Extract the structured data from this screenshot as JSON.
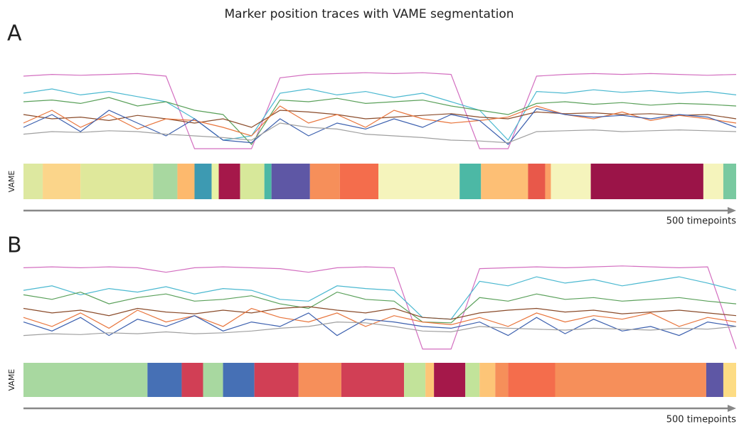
{
  "title": "Marker position traces with VAME segmentation",
  "chart_data": [
    {
      "type": "line",
      "label": "A",
      "y_label": "VAME",
      "x_label": "500 timepoints",
      "xlim": [
        0,
        500
      ],
      "ylim": [
        0,
        100
      ],
      "x": [
        0,
        20,
        40,
        60,
        80,
        100,
        120,
        140,
        160,
        180,
        200,
        220,
        240,
        260,
        280,
        300,
        320,
        340,
        360,
        380,
        400,
        420,
        440,
        460,
        480,
        500
      ],
      "series": [
        {
          "color": "#d36fc0",
          "values": [
            90,
            92,
            91,
            92,
            93,
            90,
            5,
            5,
            5,
            88,
            92,
            93,
            94,
            93,
            94,
            92,
            5,
            5,
            90,
            92,
            93,
            92,
            93,
            92,
            91,
            92
          ]
        },
        {
          "color": "#4ab8d0",
          "values": [
            70,
            75,
            68,
            72,
            66,
            60,
            40,
            15,
            20,
            70,
            75,
            68,
            72,
            65,
            70,
            60,
            50,
            15,
            72,
            70,
            74,
            71,
            73,
            70,
            72,
            68
          ]
        },
        {
          "color": "#5aa05a",
          "values": [
            60,
            62,
            58,
            65,
            55,
            60,
            50,
            45,
            10,
            62,
            60,
            64,
            58,
            60,
            62,
            55,
            50,
            45,
            58,
            60,
            57,
            59,
            56,
            58,
            57,
            55
          ]
        },
        {
          "color": "#8a4b2a",
          "values": [
            45,
            40,
            42,
            38,
            44,
            40,
            35,
            40,
            30,
            50,
            48,
            45,
            40,
            42,
            44,
            46,
            42,
            40,
            48,
            46,
            47,
            45,
            46,
            44,
            45,
            40
          ]
        },
        {
          "color": "#e8743b",
          "values": [
            35,
            50,
            30,
            45,
            28,
            40,
            38,
            30,
            20,
            55,
            35,
            45,
            30,
            50,
            40,
            35,
            38,
            42,
            55,
            45,
            40,
            48,
            38,
            44,
            40,
            35
          ]
        },
        {
          "color": "#3b5fae",
          "values": [
            30,
            45,
            25,
            50,
            35,
            20,
            40,
            15,
            12,
            40,
            20,
            35,
            28,
            40,
            30,
            45,
            38,
            10,
            52,
            45,
            42,
            44,
            40,
            45,
            42,
            30
          ]
        },
        {
          "color": "#a0a0a0",
          "values": [
            22,
            25,
            24,
            26,
            25,
            22,
            20,
            18,
            15,
            35,
            30,
            28,
            22,
            20,
            18,
            15,
            14,
            12,
            25,
            26,
            27,
            25,
            26,
            27,
            26,
            25
          ]
        }
      ],
      "segments": {
        "edges": [
          0,
          13.5,
          40,
          91,
          108,
          120,
          132,
          137,
          152,
          169,
          174,
          201,
          222,
          249,
          306,
          321,
          354,
          366,
          370,
          398,
          477,
          491,
          500
        ],
        "colors": [
          "#dde8a0",
          "#fbd58a",
          "#dfe89b",
          "#a8d8a0",
          "#fdb96d",
          "#3d9ab2",
          "#e7f2a5",
          "#a5184a",
          "#d7e89a",
          "#4cb8a5",
          "#5e57a5",
          "#f68f5a",
          "#f46d4c",
          "#f5f4bc",
          "#4cb8a5",
          "#fdbf75",
          "#e8584a",
          "#fba066",
          "#f5f4bc",
          "#9b1448",
          "#f5f4bc",
          "#79c9a0"
        ]
      }
    },
    {
      "type": "line",
      "label": "B",
      "y_label": "VAME",
      "x_label": "500 timepoints",
      "xlim": [
        0,
        500
      ],
      "ylim": [
        0,
        100
      ],
      "x": [
        0,
        20,
        40,
        60,
        80,
        100,
        120,
        140,
        160,
        180,
        200,
        220,
        240,
        260,
        280,
        300,
        320,
        340,
        360,
        380,
        400,
        420,
        440,
        460,
        480,
        500
      ],
      "series": [
        {
          "color": "#d36fc0",
          "values": [
            95,
            96,
            95,
            96,
            95,
            90,
            95,
            96,
            95,
            94,
            90,
            95,
            96,
            95,
            5,
            5,
            94,
            95,
            96,
            95,
            96,
            97,
            96,
            95,
            96,
            5
          ]
        },
        {
          "color": "#4ab8d0",
          "values": [
            70,
            75,
            65,
            72,
            68,
            74,
            66,
            72,
            70,
            60,
            58,
            75,
            72,
            70,
            40,
            38,
            80,
            75,
            85,
            78,
            82,
            75,
            80,
            85,
            78,
            70
          ]
        },
        {
          "color": "#5aa05a",
          "values": [
            65,
            60,
            68,
            55,
            62,
            66,
            58,
            60,
            64,
            55,
            50,
            68,
            60,
            58,
            35,
            34,
            62,
            58,
            66,
            60,
            62,
            58,
            60,
            62,
            58,
            55
          ]
        },
        {
          "color": "#8a4b2a",
          "values": [
            50,
            45,
            48,
            42,
            50,
            46,
            44,
            48,
            45,
            50,
            52,
            48,
            45,
            50,
            40,
            38,
            45,
            48,
            50,
            46,
            48,
            44,
            46,
            48,
            45,
            42
          ]
        },
        {
          "color": "#e8743b",
          "values": [
            40,
            30,
            45,
            28,
            48,
            35,
            42,
            30,
            50,
            40,
            35,
            45,
            30,
            42,
            35,
            32,
            40,
            30,
            45,
            35,
            42,
            38,
            45,
            30,
            40,
            35
          ]
        },
        {
          "color": "#3b5fae",
          "values": [
            35,
            25,
            40,
            20,
            38,
            30,
            42,
            25,
            35,
            30,
            45,
            20,
            38,
            35,
            30,
            28,
            35,
            20,
            40,
            22,
            38,
            25,
            30,
            20,
            35,
            30
          ]
        },
        {
          "color": "#a0a0a0",
          "values": [
            20,
            22,
            21,
            23,
            22,
            24,
            22,
            23,
            25,
            28,
            30,
            35,
            34,
            30,
            25,
            24,
            30,
            28,
            27,
            26,
            28,
            27,
            26,
            28,
            27,
            30
          ]
        }
      ],
      "segments": {
        "edges": [
          0,
          87,
          111,
          126,
          140,
          162,
          193,
          223,
          267,
          282,
          288,
          310,
          320,
          331,
          340,
          373,
          479,
          491,
          500
        ],
        "colors": [
          "#a8d8a0",
          "#4670b5",
          "#d13f55",
          "#a8d8a0",
          "#4670b5",
          "#d13f55",
          "#f68f5a",
          "#d13f55",
          "#c2e39a",
          "#fdc577",
          "#a5184a",
          "#c2e39a",
          "#fdc577",
          "#f68f5a",
          "#f46d4c",
          "#f68f5a",
          "#5e57a5",
          "#fddc84"
        ]
      }
    }
  ]
}
